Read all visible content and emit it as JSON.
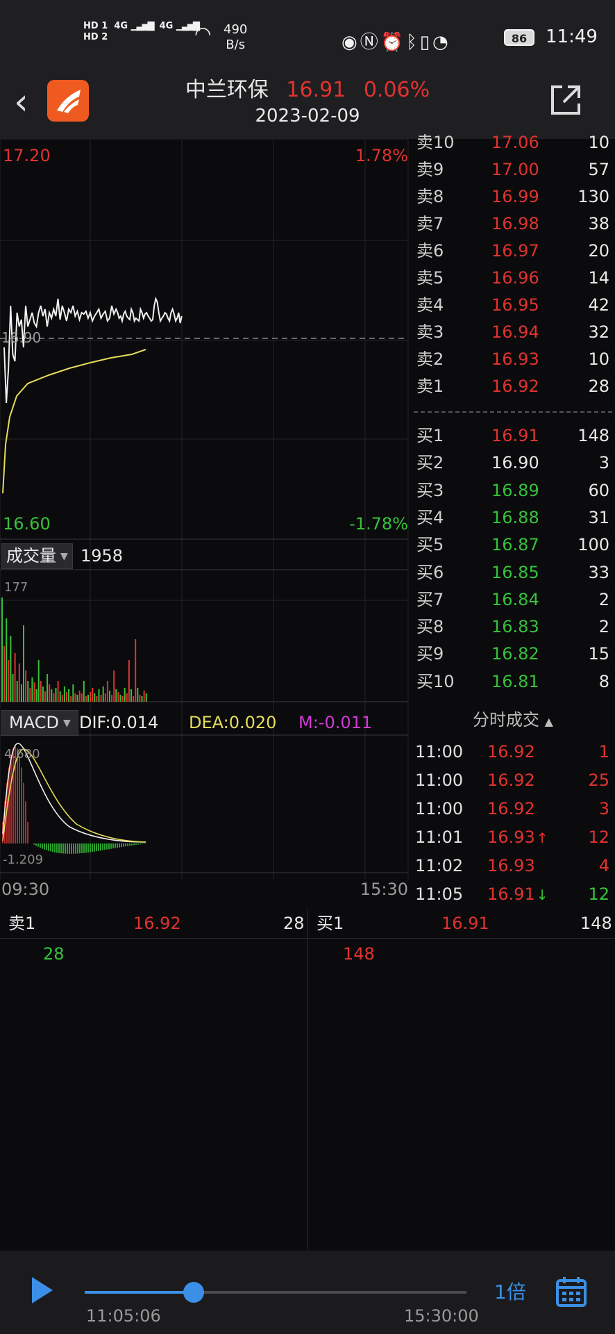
{
  "status_bar": {
    "hd1": "HD 1",
    "hd2": "HD 2",
    "net1": "4G",
    "net2": "4G",
    "speed_value": "490",
    "speed_unit": "B/s",
    "battery": "86",
    "time": "11:49"
  },
  "header": {
    "stock_name": "中兰环保",
    "price": "16.91",
    "change_pct": "0.06%",
    "date": "2023-02-09"
  },
  "price_chart": {
    "top_price": "17.20",
    "top_pct": "1.78%",
    "bottom_price": "16.60",
    "bottom_pct": "-1.78%",
    "prev_close_label": "16.90"
  },
  "volume_panel": {
    "selector": "成交量",
    "value": "1958",
    "max_label": "177"
  },
  "macd_panel": {
    "selector": "MACD",
    "dif": "DIF:0.014",
    "dea": "DEA:0.020",
    "m": "M:-0.011",
    "max_label": "4.680",
    "min_label": "-1.209"
  },
  "time_axis": {
    "start": "09:30",
    "end": "15:30"
  },
  "order_book": {
    "asks": [
      {
        "label": "卖10",
        "price": "17.06",
        "qty": "10"
      },
      {
        "label": "卖9",
        "price": "17.00",
        "qty": "57"
      },
      {
        "label": "卖8",
        "price": "16.99",
        "qty": "130"
      },
      {
        "label": "卖7",
        "price": "16.98",
        "qty": "38"
      },
      {
        "label": "卖6",
        "price": "16.97",
        "qty": "20"
      },
      {
        "label": "卖5",
        "price": "16.96",
        "qty": "14"
      },
      {
        "label": "卖4",
        "price": "16.95",
        "qty": "42"
      },
      {
        "label": "卖3",
        "price": "16.94",
        "qty": "32"
      },
      {
        "label": "卖2",
        "price": "16.93",
        "qty": "10"
      },
      {
        "label": "卖1",
        "price": "16.92",
        "qty": "28"
      }
    ],
    "bids": [
      {
        "label": "买1",
        "price": "16.91",
        "qty": "148",
        "color": "red"
      },
      {
        "label": "买2",
        "price": "16.90",
        "qty": "3",
        "color": "white"
      },
      {
        "label": "买3",
        "price": "16.89",
        "qty": "60",
        "color": "green"
      },
      {
        "label": "买4",
        "price": "16.88",
        "qty": "31",
        "color": "green"
      },
      {
        "label": "买5",
        "price": "16.87",
        "qty": "100",
        "color": "green"
      },
      {
        "label": "买6",
        "price": "16.85",
        "qty": "33",
        "color": "green"
      },
      {
        "label": "买7",
        "price": "16.84",
        "qty": "2",
        "color": "green"
      },
      {
        "label": "买8",
        "price": "16.83",
        "qty": "2",
        "color": "green"
      },
      {
        "label": "买9",
        "price": "16.82",
        "qty": "15",
        "color": "green"
      },
      {
        "label": "买10",
        "price": "16.81",
        "qty": "8",
        "color": "green"
      }
    ]
  },
  "ticks": {
    "header": "分时成交",
    "rows": [
      {
        "time": "11:00",
        "price": "16.92",
        "arrow": "",
        "vol": "1",
        "vol_color": "red"
      },
      {
        "time": "11:00",
        "price": "16.92",
        "arrow": "",
        "vol": "25",
        "vol_color": "red"
      },
      {
        "time": "11:00",
        "price": "16.92",
        "arrow": "",
        "vol": "3",
        "vol_color": "red"
      },
      {
        "time": "11:01",
        "price": "16.93",
        "arrow": "↑",
        "vol": "12",
        "vol_color": "red"
      },
      {
        "time": "11:02",
        "price": "16.93",
        "arrow": "",
        "vol": "4",
        "vol_color": "red"
      },
      {
        "time": "11:05",
        "price": "16.91",
        "arrow": "↓",
        "vol": "12",
        "vol_color": "green"
      }
    ]
  },
  "bottom": {
    "ask_label": "卖1",
    "ask_price": "16.92",
    "ask_qty": "28",
    "ask_value": "28",
    "bid_label": "买1",
    "bid_price": "16.91",
    "bid_qty": "148",
    "bid_value": "148"
  },
  "playback": {
    "current_time": "11:05:06",
    "end_time": "15:30:00",
    "speed": "1倍",
    "progress": 0.285
  },
  "colors": {
    "up": "#e0332f",
    "down": "#36c23a",
    "accent": "#3c8fe6",
    "avg_line": "#e6dc5a"
  }
}
